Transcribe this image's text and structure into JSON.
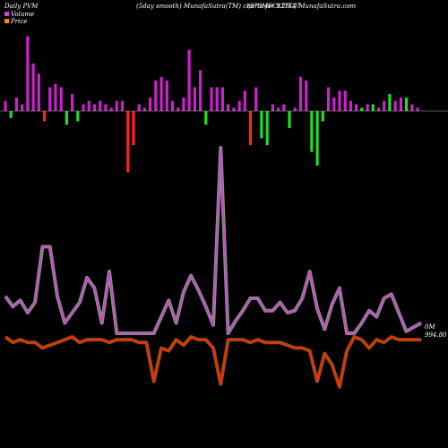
{
  "header": {
    "left": "Daily PVM",
    "center": "(5day smooth) MunafaSutra(TM) charts for 937547",
    "right": "(973MFCL26C) MunafaSutra.com"
  },
  "legend": [
    {
      "label": "Volume",
      "color": "#cc44cc"
    },
    {
      "label": "Price",
      "color": "#ff8800"
    }
  ],
  "labels": {
    "volume_last": "0M",
    "price_last": "994.80"
  },
  "colors": {
    "background": "#000000",
    "bar_up": "#cc22cc",
    "bar_down_red": "#ff2222",
    "bar_down_green": "#22dd22",
    "volume_line": "#cc44cc",
    "volume_line_glow": "#ffffff",
    "price_line": "#ff2222",
    "price_line_glow": "#ff9900",
    "baseline": "#aaaaaa"
  },
  "chart_data": {
    "type": "bar+line",
    "title": "(5day smooth) MunafaSutra(TM) charts for 937547",
    "bars": {
      "values": [
        0.3,
        -0.2,
        0.4,
        0.2,
        2.2,
        1.4,
        1.1,
        -0.3,
        0.7,
        0.8,
        0.7,
        -0.4,
        0.5,
        -0.3,
        0.2,
        0.3,
        0.2,
        0.3,
        0.2,
        0.1,
        0.3,
        0.3,
        -1.8,
        -1.0,
        0.2,
        0.1,
        0.4,
        0.9,
        1.0,
        0.9,
        0.3,
        0.1,
        0.4,
        1.8,
        0.7,
        1.2,
        -0.4,
        0.7,
        0.7,
        0.7,
        0.2,
        0.1,
        0.3,
        0.6,
        -1.0,
        0.7,
        -0.8,
        -1.0,
        0.2,
        0.1,
        0.2,
        -0.5,
        0.1,
        1.0,
        0.9,
        -1.2,
        -1.6,
        -0.3,
        0.7,
        0.4,
        0.6,
        0.6,
        0.3,
        0.2,
        0.1,
        0.2,
        0.2,
        0.1,
        0.3,
        0.5,
        0.3,
        0.4,
        0.4,
        0.2,
        0.1
      ],
      "signs": [
        "u",
        "g",
        "u",
        "u",
        "u",
        "u",
        "u",
        "r",
        "u",
        "u",
        "u",
        "g",
        "u",
        "g",
        "u",
        "u",
        "u",
        "u",
        "u",
        "u",
        "u",
        "u",
        "r",
        "r",
        "u",
        "u",
        "u",
        "u",
        "u",
        "u",
        "u",
        "u",
        "u",
        "u",
        "u",
        "u",
        "g",
        "u",
        "u",
        "u",
        "u",
        "u",
        "u",
        "u",
        "r",
        "u",
        "g",
        "g",
        "u",
        "u",
        "u",
        "g",
        "u",
        "u",
        "u",
        "g",
        "g",
        "g",
        "u",
        "u",
        "u",
        "u",
        "u",
        "u",
        "g",
        "u",
        "g",
        "u",
        "u",
        "g",
        "u",
        "u",
        "g",
        "u",
        "u"
      ]
    },
    "volume_line": [
      18,
      13,
      16,
      10,
      15,
      42,
      42,
      18,
      5,
      10,
      15,
      27,
      22,
      5,
      30,
      0,
      0,
      0,
      0,
      0,
      0,
      8,
      16,
      5,
      20,
      28,
      21,
      13,
      4,
      90,
      0,
      6,
      11,
      17,
      17,
      11,
      11,
      15,
      10,
      11,
      17,
      30,
      12,
      2,
      14,
      22,
      0,
      0,
      5,
      11,
      8,
      17,
      19,
      10,
      1,
      3,
      5
    ],
    "price_line": [
      0,
      -2,
      -1,
      -2,
      -2,
      -4,
      -3,
      -2,
      -1,
      0,
      -2,
      -1,
      -1,
      -1,
      -2,
      -1,
      -1,
      -1,
      -2,
      -2,
      -16,
      -4,
      -5,
      -1,
      -3,
      0,
      -1,
      -1,
      -4,
      -17,
      -1,
      -1,
      -1,
      -2,
      -1,
      -2,
      -2,
      -2,
      -3,
      -4,
      -4,
      -5,
      -16,
      -6,
      -10,
      -18,
      -5,
      0,
      -1,
      -4,
      -1,
      -2,
      0,
      -1,
      -1,
      -1,
      -1
    ]
  }
}
